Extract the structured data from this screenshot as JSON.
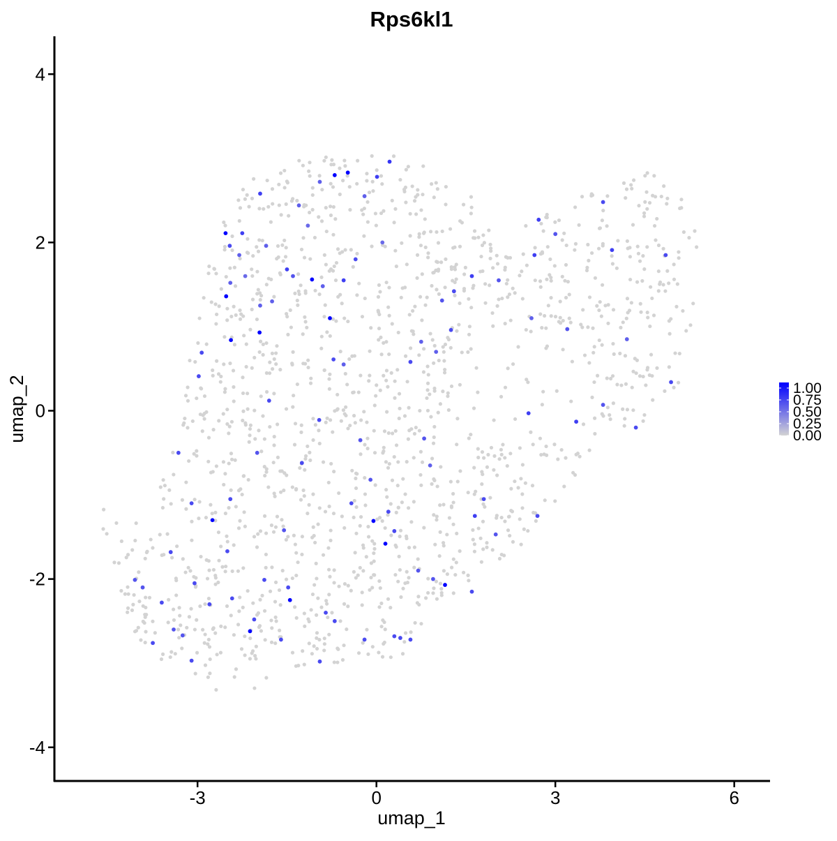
{
  "chart_data": {
    "type": "scatter",
    "title": "Rps6kl1",
    "xlabel": "umap_1",
    "ylabel": "umap_2",
    "xlim": [
      -5.4,
      6.6
    ],
    "ylim": [
      -4.4,
      4.45
    ],
    "x_ticks": [
      -3,
      0,
      3,
      6
    ],
    "y_ticks": [
      -4,
      -2,
      0,
      2,
      4
    ],
    "x_tick_labels": [
      "-3",
      "0",
      "3",
      "6"
    ],
    "y_tick_labels": [
      "-4",
      "-2",
      "0",
      "2",
      "4"
    ],
    "grid": false,
    "legend": {
      "placement": "right",
      "type": "colorbar",
      "ticks": [
        "1.00",
        "0.75",
        "0.50",
        "0.25",
        "0.00"
      ],
      "low_color": "#d3d3d3",
      "high_color": "#0000ff"
    },
    "background_point_color": "#d3d3d3",
    "background_point_count": 1500,
    "expressing_points": [
      {
        "x": -2.53,
        "y": 2.11,
        "v": 1.0
      },
      {
        "x": -0.7,
        "y": 2.8,
        "v": 1.0
      },
      {
        "x": -0.48,
        "y": 2.83,
        "v": 1.0
      },
      {
        "x": -2.52,
        "y": 1.36,
        "v": 1.0
      },
      {
        "x": -2.44,
        "y": 0.84,
        "v": 1.0
      },
      {
        "x": -1.08,
        "y": 1.56,
        "v": 1.0
      },
      {
        "x": -0.78,
        "y": 1.1,
        "v": 1.0
      },
      {
        "x": -1.96,
        "y": 0.93,
        "v": 1.0
      },
      {
        "x": -2.75,
        "y": -1.3,
        "v": 1.0
      },
      {
        "x": -2.12,
        "y": -2.62,
        "v": 1.0
      },
      {
        "x": -1.45,
        "y": -2.25,
        "v": 1.0
      },
      {
        "x": -0.05,
        "y": -1.31,
        "v": 1.0
      },
      {
        "x": 0.15,
        "y": -1.58,
        "v": 1.0
      },
      {
        "x": 1.15,
        "y": -2.07,
        "v": 1.0
      },
      {
        "x": 0.22,
        "y": 2.96,
        "v": 0.75
      },
      {
        "x": 0.01,
        "y": 2.78,
        "v": 0.7
      },
      {
        "x": -1.95,
        "y": 2.58,
        "v": 0.7
      },
      {
        "x": -2.25,
        "y": 2.11,
        "v": 0.7
      },
      {
        "x": -2.46,
        "y": 1.96,
        "v": 0.65
      },
      {
        "x": -1.5,
        "y": 1.68,
        "v": 0.7
      },
      {
        "x": -0.35,
        "y": 1.8,
        "v": 0.65
      },
      {
        "x": -0.55,
        "y": 1.55,
        "v": 0.7
      },
      {
        "x": 1.3,
        "y": 1.42,
        "v": 0.65
      },
      {
        "x": 1.6,
        "y": 1.6,
        "v": 0.7
      },
      {
        "x": 2.72,
        "y": 2.27,
        "v": 0.7
      },
      {
        "x": 2.65,
        "y": 1.85,
        "v": 0.7
      },
      {
        "x": 3.8,
        "y": 2.48,
        "v": 0.65
      },
      {
        "x": 3.95,
        "y": 1.91,
        "v": 0.7
      },
      {
        "x": 4.85,
        "y": 1.85,
        "v": 0.65
      },
      {
        "x": 4.94,
        "y": 0.34,
        "v": 0.65
      },
      {
        "x": 2.55,
        "y": -0.03,
        "v": 0.7
      },
      {
        "x": 3.35,
        "y": -0.13,
        "v": 0.7
      },
      {
        "x": 4.35,
        "y": -0.2,
        "v": 0.65
      },
      {
        "x": 2.7,
        "y": -1.25,
        "v": 0.65
      },
      {
        "x": 1.65,
        "y": -1.25,
        "v": 0.7
      },
      {
        "x": 1.25,
        "y": 0.96,
        "v": 0.65
      },
      {
        "x": 0.57,
        "y": 0.58,
        "v": 0.65
      },
      {
        "x": -0.72,
        "y": 0.61,
        "v": 0.65
      },
      {
        "x": -2.93,
        "y": 0.69,
        "v": 0.65
      },
      {
        "x": -2.98,
        "y": 0.41,
        "v": 0.65
      },
      {
        "x": -1.8,
        "y": 0.12,
        "v": 0.65
      },
      {
        "x": -0.96,
        "y": -0.11,
        "v": 0.65
      },
      {
        "x": -3.32,
        "y": -0.5,
        "v": 0.65
      },
      {
        "x": -1.25,
        "y": -0.62,
        "v": 0.65
      },
      {
        "x": -2.0,
        "y": -0.5,
        "v": 0.6
      },
      {
        "x": -3.1,
        "y": -1.1,
        "v": 0.65
      },
      {
        "x": -2.45,
        "y": -1.05,
        "v": 0.65
      },
      {
        "x": -0.42,
        "y": -1.1,
        "v": 0.65
      },
      {
        "x": 0.2,
        "y": -1.2,
        "v": 0.65
      },
      {
        "x": -1.55,
        "y": -1.42,
        "v": 0.6
      },
      {
        "x": 0.3,
        "y": -1.43,
        "v": 0.65
      },
      {
        "x": -3.45,
        "y": -1.68,
        "v": 0.65
      },
      {
        "x": -2.5,
        "y": -1.67,
        "v": 0.65
      },
      {
        "x": -3.05,
        "y": -2.05,
        "v": 0.65
      },
      {
        "x": -1.88,
        "y": -2.01,
        "v": 0.65
      },
      {
        "x": -4.05,
        "y": -2.01,
        "v": 0.6
      },
      {
        "x": -3.92,
        "y": -2.1,
        "v": 0.6
      },
      {
        "x": -3.6,
        "y": -2.28,
        "v": 0.65
      },
      {
        "x": -2.8,
        "y": -2.3,
        "v": 0.65
      },
      {
        "x": -2.42,
        "y": -2.23,
        "v": 0.65
      },
      {
        "x": -1.48,
        "y": -2.1,
        "v": 0.65
      },
      {
        "x": -0.85,
        "y": -2.4,
        "v": 0.65
      },
      {
        "x": -0.7,
        "y": -2.5,
        "v": 0.65
      },
      {
        "x": -3.75,
        "y": -2.76,
        "v": 0.65
      },
      {
        "x": -3.4,
        "y": -2.6,
        "v": 0.6
      },
      {
        "x": -3.25,
        "y": -2.67,
        "v": 0.6
      },
      {
        "x": -2.05,
        "y": -2.48,
        "v": 0.65
      },
      {
        "x": -1.6,
        "y": -2.72,
        "v": 0.65
      },
      {
        "x": -0.2,
        "y": -2.72,
        "v": 0.65
      },
      {
        "x": 0.3,
        "y": -2.68,
        "v": 0.65
      },
      {
        "x": 0.4,
        "y": -2.7,
        "v": 0.65
      },
      {
        "x": 0.57,
        "y": -2.72,
        "v": 0.65
      },
      {
        "x": -3.1,
        "y": -2.97,
        "v": 0.65
      },
      {
        "x": -0.95,
        "y": -2.98,
        "v": 0.65
      },
      {
        "x": 0.95,
        "y": -2.0,
        "v": 0.6
      },
      {
        "x": 1.6,
        "y": -2.15,
        "v": 0.65
      },
      {
        "x": 0.7,
        "y": -1.9,
        "v": 0.6
      },
      {
        "x": 1.8,
        "y": -1.05,
        "v": 0.65
      },
      {
        "x": 2.0,
        "y": -1.47,
        "v": 0.6
      },
      {
        "x": 0.8,
        "y": -0.33,
        "v": 0.6
      },
      {
        "x": 3.8,
        "y": 0.07,
        "v": 0.6
      },
      {
        "x": 3.2,
        "y": 0.97,
        "v": 0.6
      },
      {
        "x": 4.2,
        "y": 0.85,
        "v": 0.55
      },
      {
        "x": -1.85,
        "y": 1.96,
        "v": 0.55
      },
      {
        "x": -1.3,
        "y": 2.44,
        "v": 0.55
      },
      {
        "x": 2.05,
        "y": 1.55,
        "v": 0.6
      },
      {
        "x": 1.1,
        "y": 1.31,
        "v": 0.6
      },
      {
        "x": 0.75,
        "y": 0.82,
        "v": 0.55
      },
      {
        "x": -1.4,
        "y": 1.6,
        "v": 0.6
      },
      {
        "x": -1.95,
        "y": 1.25,
        "v": 0.55
      },
      {
        "x": -0.55,
        "y": 0.55,
        "v": 0.55
      },
      {
        "x": -0.27,
        "y": -0.35,
        "v": 0.6
      },
      {
        "x": 0.9,
        "y": -0.65,
        "v": 0.55
      },
      {
        "x": -0.1,
        "y": -0.82,
        "v": 0.6
      },
      {
        "x": 1.0,
        "y": 0.7,
        "v": 0.55
      },
      {
        "x": 3.0,
        "y": 2.1,
        "v": 0.6
      },
      {
        "x": 2.6,
        "y": 1.1,
        "v": 0.55
      },
      {
        "x": 0.1,
        "y": 2.0,
        "v": 0.5
      },
      {
        "x": -1.15,
        "y": 2.2,
        "v": 0.5
      },
      {
        "x": -2.3,
        "y": 1.85,
        "v": 0.55
      },
      {
        "x": -2.45,
        "y": 1.52,
        "v": 0.55
      },
      {
        "x": -2.2,
        "y": 1.6,
        "v": 0.5
      },
      {
        "x": -1.75,
        "y": 1.3,
        "v": 0.55
      },
      {
        "x": -0.9,
        "y": 1.48,
        "v": 0.55
      },
      {
        "x": -0.2,
        "y": 2.55,
        "v": 0.55
      },
      {
        "x": -0.95,
        "y": 2.72,
        "v": 0.55
      }
    ]
  }
}
